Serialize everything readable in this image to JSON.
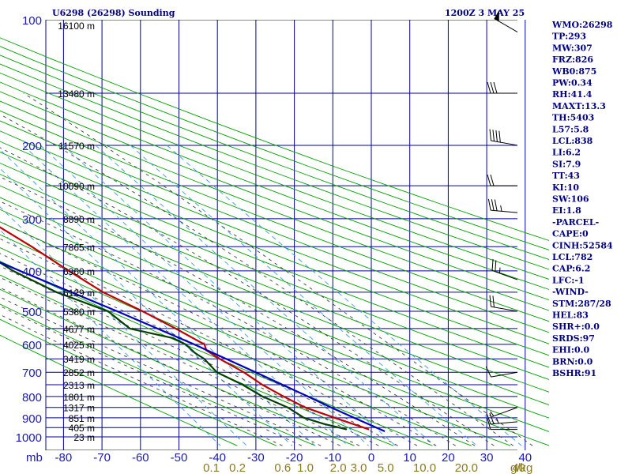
{
  "header": {
    "station": "U6298 (26298) Sounding",
    "time": "1200Z  3 MAY 25"
  },
  "colors": {
    "grid": "#0000a0",
    "dry_adiabat": "#00a000",
    "moist_adiabat": "#404040",
    "mixing_ratio": "#3a9ad9",
    "temperature": "#c00000",
    "dewpoint": "#004000",
    "parcel": "#0000c0",
    "axis_text": "#1a1ab4",
    "mixing_text": "#8a7a20"
  },
  "chart_data": {
    "type": "line",
    "title": "U6298 (26298) Sounding",
    "subtitle": "1200Z  3 MAY 25",
    "xlabel": "",
    "ylabel": "mb",
    "pressure_ticks": [
      100,
      200,
      300,
      400,
      500,
      600,
      700,
      800,
      900,
      1000
    ],
    "pressure_labels": [
      "100",
      "200",
      "300",
      "400",
      "500",
      "600",
      "700",
      "800",
      "900",
      "1000"
    ],
    "temperature_ticks": [
      -80,
      -70,
      -60,
      -50,
      -40,
      -30,
      -20,
      -10,
      0,
      10,
      20,
      30,
      40
    ],
    "temperature_labels": [
      "-80",
      "-70",
      "-60",
      "-50",
      "-40",
      "-30",
      "-20",
      "-10",
      "0",
      "10",
      "20",
      "30",
      "40"
    ],
    "mixing_ratio_ticks": [
      0.1,
      0.2,
      0.6,
      1.0,
      2.0,
      3.0,
      5.0,
      10.0,
      20.0,
      40.0
    ],
    "mixing_ratio_labels": [
      "0.1",
      "0.2",
      "0.6",
      "1.0",
      "2.0",
      "3.0",
      "5.0",
      "10.0",
      "20.0",
      "40"
    ],
    "mixing_ratio_unit": "g/kg",
    "xlim": [
      -80,
      40
    ],
    "ylim": [
      100,
      1050
    ],
    "height_labels": [
      {
        "p": 103,
        "label": "16100 m"
      },
      {
        "p": 150,
        "label": "13480 m"
      },
      {
        "p": 200,
        "label": "11570 m"
      },
      {
        "p": 250,
        "label": "10090 m"
      },
      {
        "p": 300,
        "label": "8890 m"
      },
      {
        "p": 350,
        "label": "7865 m"
      },
      {
        "p": 400,
        "label": "6960 m"
      },
      {
        "p": 450,
        "label": "6129 m"
      },
      {
        "p": 500,
        "label": "5380 m"
      },
      {
        "p": 550,
        "label": "4677 m"
      },
      {
        "p": 600,
        "label": "4025 m"
      },
      {
        "p": 650,
        "label": "3419 m"
      },
      {
        "p": 700,
        "label": "2852 m"
      },
      {
        "p": 750,
        "label": "2313 m"
      },
      {
        "p": 800,
        "label": "1801 m"
      },
      {
        "p": 850,
        "label": "1317 m"
      },
      {
        "p": 900,
        "label": "851 m"
      },
      {
        "p": 950,
        "label": "405 m"
      },
      {
        "p": 1000,
        "label": "23 m"
      }
    ],
    "series": [
      {
        "key": "temperature",
        "p": [
          100,
          150,
          200,
          210,
          230,
          250,
          280,
          300,
          350,
          400,
          450,
          500,
          550,
          600,
          620,
          650,
          700,
          750,
          800,
          850,
          900,
          960
        ],
        "t": [
          -80.5,
          -67.5,
          -55.7,
          -56.6,
          -55.6,
          -55.8,
          -56.4,
          -53.1,
          -47.2,
          -42.8,
          -38.5,
          -32.3,
          -27.5,
          -23.4,
          -24.2,
          -22.6,
          -19.2,
          -17.1,
          -14.1,
          -10.9,
          -5.4,
          1.0
        ]
      },
      {
        "key": "dewpoint",
        "p": [
          100,
          150,
          200,
          250,
          280,
          300,
          350,
          400,
          450,
          500,
          550,
          580,
          600,
          630,
          650,
          700,
          750,
          800,
          850,
          900,
          930,
          960
        ],
        "t": [
          -102.8,
          -91.8,
          -81.6,
          -72.4,
          -72.7,
          -70.9,
          -62.1,
          -57.3,
          -50.6,
          -41.3,
          -39.4,
          -30.2,
          -28.3,
          -27.7,
          -26.6,
          -26.2,
          -22.2,
          -19.6,
          -15.4,
          -13.4,
          -9.6,
          -4.8
        ]
      },
      {
        "key": "parcel",
        "p": [
          240,
          300,
          400,
          500,
          600,
          650,
          700,
          800,
          850,
          900,
          970
        ],
        "t": [
          -99.5,
          -76.2,
          -55.5,
          -38.9,
          -26.1,
          -20.9,
          -16.1,
          -7.8,
          -4.1,
          -0.4,
          4.7
        ]
      }
    ],
    "wind_barbs": [
      {
        "p": 107,
        "dir": 300,
        "spd": 50
      },
      {
        "p": 150,
        "dir": 270,
        "spd": 30
      },
      {
        "p": 200,
        "dir": 280,
        "spd": 40
      },
      {
        "p": 250,
        "dir": 270,
        "spd": 20
      },
      {
        "p": 290,
        "dir": 275,
        "spd": 35
      },
      {
        "p": 420,
        "dir": 290,
        "spd": 25
      },
      {
        "p": 500,
        "dir": 280,
        "spd": 20
      },
      {
        "p": 700,
        "dir": 260,
        "spd": 10
      },
      {
        "p": 850,
        "dir": 250,
        "spd": 5
      },
      {
        "p": 920,
        "dir": 265,
        "spd": 25
      },
      {
        "p": 960,
        "dir": 270,
        "spd": 10
      }
    ]
  },
  "indices": [
    "WMO:26298",
    "TP:293",
    "MW:307",
    "FRZ:826",
    "WB0:875",
    "PW:0.34",
    "RH:41.4",
    "MAXT:13.3",
    "TH:5403",
    "L57:5.8",
    "LCL:838",
    "LI:6.2",
    "SI:7.9",
    "TT:43",
    "KI:10",
    "SW:106",
    "EI:1.8",
    "-PARCEL-",
    "CAPE:0",
    "CINH:52584",
    "LCL:782",
    "CAP:6.2",
    "LFC:-1",
    "-WIND-",
    "STM:287/28",
    "HEL:83",
    "SHR+:0.0",
    "SRDS:97",
    "EHI:0.0",
    "BRN:0.0",
    "BSHR:91"
  ]
}
